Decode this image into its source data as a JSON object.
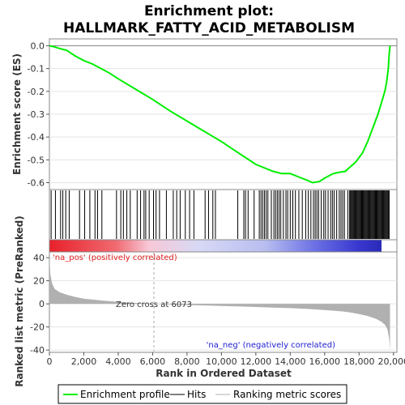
{
  "chart_data": {
    "type": "line",
    "title_line1": "Enrichment plot:",
    "title_line2": "HALLMARK_FATTY_ACID_METABOLISM",
    "es_panel": {
      "ylabel": "Enrichment score (ES)",
      "ylim": [
        -0.63,
        0.03
      ],
      "yticks": [
        0.0,
        -0.1,
        -0.2,
        -0.3,
        -0.4,
        -0.5,
        -0.6
      ],
      "ytick_labels": [
        "0.0",
        "-0.1",
        "-0.2",
        "-0.3",
        "-0.4",
        "-0.5",
        "-0.6"
      ],
      "series": [
        {
          "name": "Enrichment profile",
          "color": "#00ee00",
          "x": [
            0,
            300,
            500,
            1000,
            1500,
            2000,
            2500,
            3000,
            3500,
            4000,
            5000,
            6000,
            7000,
            8000,
            9000,
            10000,
            11000,
            12000,
            13000,
            13500,
            14000,
            14500,
            15000,
            15300,
            15700,
            16000,
            16500,
            16800,
            17200,
            17500,
            17800,
            18200,
            18500,
            18800,
            19100,
            19300,
            19500,
            19600,
            19700,
            19750,
            19800
          ],
          "y": [
            0.0,
            -0.005,
            -0.01,
            -0.02,
            -0.045,
            -0.065,
            -0.08,
            -0.1,
            -0.12,
            -0.145,
            -0.19,
            -0.235,
            -0.285,
            -0.33,
            -0.375,
            -0.42,
            -0.47,
            -0.52,
            -0.55,
            -0.56,
            -0.56,
            -0.575,
            -0.59,
            -0.6,
            -0.595,
            -0.58,
            -0.56,
            -0.555,
            -0.55,
            -0.53,
            -0.51,
            -0.47,
            -0.42,
            -0.36,
            -0.3,
            -0.25,
            -0.2,
            -0.16,
            -0.1,
            -0.04,
            0.0
          ]
        }
      ]
    },
    "hits": {
      "name": "Hits",
      "x": [
        100,
        350,
        650,
        780,
        950,
        1150,
        1750,
        2050,
        2350,
        2650,
        2800,
        3050,
        3900,
        4150,
        4300,
        4500,
        4700,
        5100,
        5300,
        5500,
        5600,
        5800,
        6050,
        6200,
        6400,
        6800,
        7200,
        7400,
        7600,
        7900,
        8150,
        8400,
        9050,
        9250,
        9500,
        9650,
        10950,
        11300,
        11400,
        11550,
        11900,
        12200,
        12300,
        12400,
        12500,
        12600,
        12700,
        12900,
        13050,
        13150,
        13250,
        13350,
        13450,
        13600,
        13750,
        13850,
        14000,
        14150,
        14300,
        14500,
        14700,
        14900,
        15050,
        15200,
        15350,
        15450,
        15550,
        15650,
        15800,
        15950,
        16050,
        16200,
        16350,
        16450,
        16550,
        16700,
        16850,
        16950,
        17050,
        17150,
        17350,
        17450,
        17500,
        17550,
        17600,
        17650,
        17700,
        17750,
        17800,
        17850,
        17900,
        17950,
        18000,
        18050,
        18100,
        18150,
        18200,
        18250,
        18300,
        18350,
        18400,
        18450,
        18500,
        18550,
        18600,
        18650,
        18700,
        18750,
        18800,
        18850,
        18900,
        18950,
        19000,
        19050,
        19100,
        19150,
        19200,
        19250,
        19300,
        19350,
        19400,
        19450,
        19500,
        19550,
        19600,
        19650,
        19700,
        19750
      ]
    },
    "metric_panel": {
      "ylabel": "Ranked list metric (PreRanked)",
      "xlabel": "Rank in Ordered Dataset",
      "ylim": [
        -42,
        45
      ],
      "yticks": [
        40,
        20,
        0,
        -20,
        -40
      ],
      "ytick_labels": [
        "40",
        "20",
        "0",
        "-20",
        "-40"
      ],
      "xlim": [
        0,
        20200
      ],
      "xticks": [
        0,
        2000,
        4000,
        6000,
        8000,
        10000,
        12000,
        14000,
        16000,
        18000,
        20000
      ],
      "xtick_labels": [
        "0",
        "2,000",
        "4,000",
        "6,000",
        "8,000",
        "10,000",
        "12,000",
        "14,000",
        "16,000",
        "18,000",
        "20,000"
      ],
      "series": [
        {
          "name": "Ranking metric scores",
          "color": "#b0b0b0",
          "x": [
            0,
            50,
            150,
            300,
            600,
            1000,
            1500,
            2000,
            3000,
            4000,
            5000,
            6073,
            7000,
            8000,
            9000,
            10000,
            11000,
            12000,
            13000,
            14000,
            15000,
            16000,
            17000,
            17500,
            18000,
            18500,
            19000,
            19300,
            19500,
            19650,
            19750,
            19800
          ],
          "y": [
            42,
            26,
            18,
            13,
            10,
            8,
            6,
            4.5,
            3,
            1.8,
            0.8,
            0,
            -0.5,
            -1,
            -1.4,
            -1.8,
            -2.2,
            -2.7,
            -3.2,
            -3.7,
            -4.4,
            -5.3,
            -6.5,
            -7.5,
            -8.8,
            -10.5,
            -13,
            -15.5,
            -18,
            -22,
            -30,
            -40
          ]
        }
      ],
      "zero_cross_label": "Zero cross at 6073",
      "zero_cross_x": 6073,
      "pos_label": "'na_pos' (positively correlated)",
      "neg_label": "'na_neg' (negatively correlated)"
    },
    "legend": {
      "items": [
        "Enrichment profile",
        "Hits",
        "Ranking metric scores"
      ],
      "placement": "bottom"
    },
    "colors": {
      "es_line": "#00ee00",
      "hits": "#000000",
      "metric_fill": "#b0b0b0",
      "pos_text": "#e02020",
      "neg_text": "#2020d0",
      "zero_line": "#aaaaaa"
    }
  }
}
